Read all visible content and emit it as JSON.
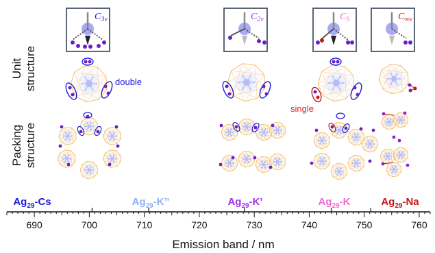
{
  "row_labels": {
    "unit_line1": "Unit",
    "unit_line2": "structure",
    "packing_line1": "Packing",
    "packing_line2": "structure"
  },
  "annotations": {
    "double": "double",
    "single": "single"
  },
  "axis": {
    "label": "Emission band / nm",
    "min": 685,
    "max": 762,
    "ticks": [
      "690",
      "700",
      "710",
      "720",
      "730",
      "740",
      "750",
      "760"
    ],
    "tick_values": [
      690,
      700,
      710,
      720,
      730,
      740,
      750,
      760
    ]
  },
  "clusters": [
    {
      "id": "cs",
      "prefix": "Ag",
      "sub": "29",
      "suffix": "-Cs",
      "color": "#1a1adb",
      "nm": 700.5,
      "symmetry": "C",
      "sym_sub": "3v"
    },
    {
      "id": "k2",
      "prefix": "Ag",
      "sub": "29",
      "suffix": "-K’’",
      "color": "#8fb3f0",
      "nm": 710.8,
      "symmetry": "",
      "sym_sub": ""
    },
    {
      "id": "k1",
      "prefix": "Ag",
      "sub": "29",
      "suffix": "-K’",
      "color": "#9a33e8",
      "nm": 728.2,
      "symmetry": "C",
      "sym_sub": "2v"
    },
    {
      "id": "k",
      "prefix": "Ag",
      "sub": "29",
      "suffix": "-K",
      "color": "#f06ad0",
      "nm": 744.0,
      "symmetry": "C",
      "sym_sub": "S"
    },
    {
      "id": "na",
      "prefix": "Ag",
      "sub": "29",
      "suffix": "-Na",
      "color": "#c41616",
      "nm": 751.2,
      "symmetry": "C",
      "sym_sub": "∞v"
    }
  ]
}
